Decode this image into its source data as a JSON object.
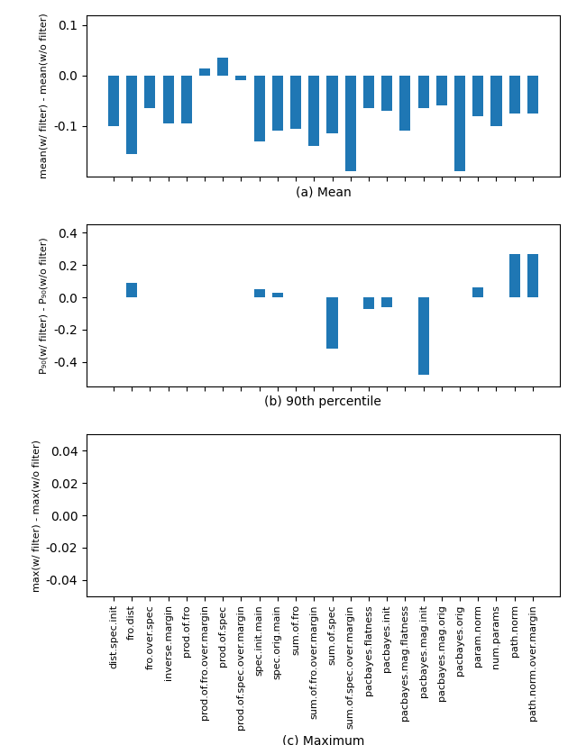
{
  "chart_data": [
    {
      "type": "bar",
      "categories": [
        "dist.spec.init",
        "fro.dist",
        "fro.over.spec",
        "inverse.margin",
        "prod.of.fro",
        "prod.of.fro.over.margin",
        "prod.of.spec",
        "prod.of.spec.over.margin",
        "spec.init.main",
        "spec.orig.main",
        "sum.of.fro",
        "sum.of.fro.over.margin",
        "sum.of.spec",
        "sum.of.spec.over.margin",
        "pacbayes.flatness",
        "pacbayes.init",
        "pacbayes.mag.flatness",
        "pacbayes.mag.init",
        "pacbayes.mag.orig",
        "pacbayes.orig",
        "param.norm",
        "num.params",
        "path.norm",
        "path.norm.over.margin"
      ],
      "values": [
        -0.1,
        -0.155,
        -0.065,
        -0.095,
        -0.095,
        0.013,
        0.035,
        -0.01,
        -0.13,
        -0.11,
        -0.105,
        -0.14,
        -0.115,
        -0.19,
        -0.065,
        -0.07,
        -0.11,
        -0.065,
        -0.06,
        -0.19,
        -0.08,
        -0.1,
        -0.075,
        -0.075
      ],
      "ylabel": "mean(w/ filter) - mean(w/o filter)",
      "xlabel": "(a) Mean",
      "ylim": [
        -0.2,
        0.12
      ],
      "yticks": [
        -0.1,
        0.0,
        0.1
      ],
      "tick_labels": "y"
    },
    {
      "type": "bar",
      "categories": [
        "dist.spec.init",
        "fro.dist",
        "fro.over.spec",
        "inverse.margin",
        "prod.of.fro",
        "prod.of.fro.over.margin",
        "prod.of.spec",
        "prod.of.spec.over.margin",
        "spec.init.main",
        "spec.orig.main",
        "sum.of.fro",
        "sum.of.fro.over.margin",
        "sum.of.spec",
        "sum.of.spec.over.margin",
        "pacbayes.flatness",
        "pacbayes.init",
        "pacbayes.mag.flatness",
        "pacbayes.mag.init",
        "pacbayes.mag.orig",
        "pacbayes.orig",
        "param.norm",
        "num.params",
        "path.norm",
        "path.norm.over.margin"
      ],
      "values": [
        0.0,
        0.09,
        0.0,
        0.0,
        0.0,
        0.0,
        0.0,
        0.0,
        0.05,
        0.03,
        0.0,
        0.0,
        -0.32,
        0.0,
        -0.07,
        -0.06,
        0.0,
        -0.48,
        0.0,
        0.0,
        0.06,
        0.0,
        0.27,
        0.27
      ],
      "ylabel": "P₉₀(w/ filter) - P₉₀(w/o filter)",
      "xlabel": "(b) 90th percentile",
      "ylim": [
        -0.55,
        0.45
      ],
      "yticks": [
        -0.4,
        -0.2,
        0.0,
        0.2,
        0.4
      ],
      "tick_labels": "y"
    },
    {
      "type": "bar",
      "categories": [
        "dist.spec.init",
        "fro.dist",
        "fro.over.spec",
        "inverse.margin",
        "prod.of.fro",
        "prod.of.fro.over.margin",
        "prod.of.spec",
        "prod.of.spec.over.margin",
        "spec.init.main",
        "spec.orig.main",
        "sum.of.fro",
        "sum.of.fro.over.margin",
        "sum.of.spec",
        "sum.of.spec.over.margin",
        "pacbayes.flatness",
        "pacbayes.init",
        "pacbayes.mag.flatness",
        "pacbayes.mag.init",
        "pacbayes.mag.orig",
        "pacbayes.orig",
        "param.norm",
        "num.params",
        "path.norm",
        "path.norm.over.margin"
      ],
      "values": [
        0.0,
        0.0,
        0.0,
        0.0,
        0.0,
        0.0,
        0.0,
        0.0,
        0.0,
        0.0,
        0.0,
        0.0,
        0.0,
        0.0,
        0.0,
        0.0,
        0.0,
        0.0,
        0.0,
        0.0,
        0.0,
        0.0,
        0.0,
        0.0
      ],
      "ylabel": "max(w/ filter) - max(w/o filter)",
      "xlabel": "(c) Maximum",
      "ylim": [
        -0.05,
        0.05
      ],
      "yticks": [
        -0.04,
        -0.02,
        {
          "value": 0.0,
          "label": "0.00"
        },
        0.02,
        0.04
      ]
    }
  ]
}
